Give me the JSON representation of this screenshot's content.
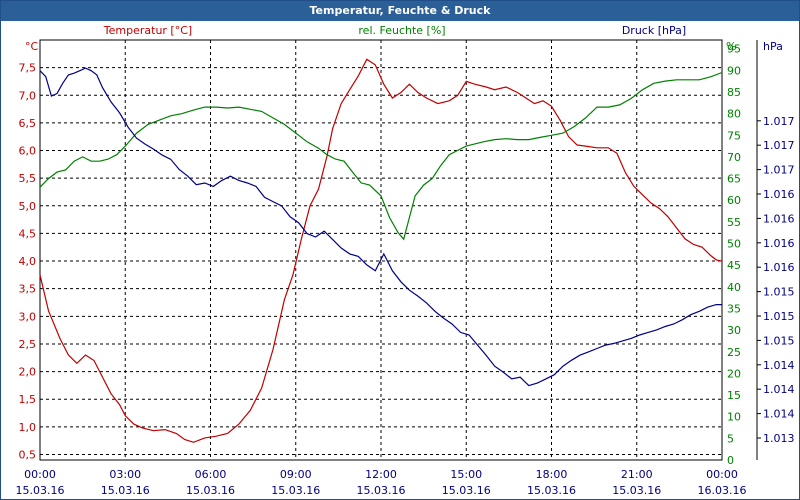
{
  "window": {
    "title": "Temperatur, Feuchte & Druck"
  },
  "chart_data": {
    "type": "line",
    "title": "Temperatur, Feuchte & Druck",
    "colors": {
      "temperature": "#c00000",
      "humidity": "#008000",
      "pressure": "#00008b",
      "grid": "#000000"
    },
    "x": {
      "ticks": [
        {
          "time": "00:00",
          "date": "15.03.16"
        },
        {
          "time": "03:00",
          "date": "15.03.16"
        },
        {
          "time": "06:00",
          "date": "15.03.16"
        },
        {
          "time": "09:00",
          "date": "15.03.16"
        },
        {
          "time": "12:00",
          "date": "15.03.16"
        },
        {
          "time": "15:00",
          "date": "15.03.16"
        },
        {
          "time": "18:00",
          "date": "15.03.16"
        },
        {
          "time": "21:00",
          "date": "15.03.16"
        },
        {
          "time": "00:00",
          "date": "16.03.16"
        }
      ],
      "range_hours": [
        0,
        24
      ]
    },
    "axes": {
      "temperature": {
        "label": "Temperatur [°C]",
        "unit": "°C",
        "ylim": [
          0.4,
          8.0
        ],
        "ticks": [
          "0,5",
          "1,0",
          "1,5",
          "2,0",
          "2,5",
          "3,0",
          "3,5",
          "4,0",
          "4,5",
          "5,0",
          "5,5",
          "6,0",
          "6,5",
          "7,0",
          "7,5"
        ]
      },
      "humidity": {
        "label": "rel. Feuchte [%]",
        "unit": "%",
        "ylim": [
          0,
          97
        ],
        "ticks": [
          "0",
          "5",
          "10",
          "15",
          "20",
          "25",
          "30",
          "35",
          "40",
          "45",
          "50",
          "55",
          "60",
          "65",
          "70",
          "75",
          "80",
          "85",
          "90",
          "95"
        ]
      },
      "pressure": {
        "label": "Druck [hPa]",
        "unit": "hPa",
        "ticks": [
          "1.013",
          "1.014",
          "1.014",
          "1.014",
          "1.015",
          "1.015",
          "1.015",
          "1.016",
          "1.016",
          "1.016",
          "1.016",
          "1.017",
          "1.017",
          "1.017"
        ]
      }
    },
    "series": [
      {
        "name": "Temperatur [°C]",
        "axis": "temperature",
        "points": [
          [
            0,
            3.75
          ],
          [
            0.3,
            3.1
          ],
          [
            0.7,
            2.6
          ],
          [
            1.0,
            2.3
          ],
          [
            1.3,
            2.15
          ],
          [
            1.6,
            2.3
          ],
          [
            1.9,
            2.2
          ],
          [
            2.2,
            1.9
          ],
          [
            2.5,
            1.6
          ],
          [
            2.8,
            1.4
          ],
          [
            3.0,
            1.2
          ],
          [
            3.3,
            1.05
          ],
          [
            3.6,
            0.98
          ],
          [
            4.0,
            0.93
          ],
          [
            4.4,
            0.95
          ],
          [
            4.8,
            0.88
          ],
          [
            5.1,
            0.77
          ],
          [
            5.4,
            0.72
          ],
          [
            5.8,
            0.8
          ],
          [
            6.2,
            0.83
          ],
          [
            6.6,
            0.88
          ],
          [
            7.0,
            1.05
          ],
          [
            7.4,
            1.3
          ],
          [
            7.8,
            1.7
          ],
          [
            8.2,
            2.4
          ],
          [
            8.6,
            3.3
          ],
          [
            8.9,
            3.75
          ],
          [
            9.2,
            4.4
          ],
          [
            9.5,
            5.0
          ],
          [
            9.8,
            5.3
          ],
          [
            10.1,
            5.9
          ],
          [
            10.3,
            6.4
          ],
          [
            10.6,
            6.85
          ],
          [
            10.9,
            7.1
          ],
          [
            11.2,
            7.35
          ],
          [
            11.5,
            7.65
          ],
          [
            11.8,
            7.55
          ],
          [
            12.1,
            7.2
          ],
          [
            12.4,
            6.95
          ],
          [
            12.7,
            7.05
          ],
          [
            13.0,
            7.2
          ],
          [
            13.3,
            7.05
          ],
          [
            13.6,
            6.95
          ],
          [
            14.0,
            6.85
          ],
          [
            14.4,
            6.9
          ],
          [
            14.7,
            7.0
          ],
          [
            15.0,
            7.25
          ],
          [
            15.3,
            7.2
          ],
          [
            15.7,
            7.15
          ],
          [
            16.0,
            7.1
          ],
          [
            16.4,
            7.15
          ],
          [
            16.8,
            7.05
          ],
          [
            17.1,
            6.95
          ],
          [
            17.4,
            6.85
          ],
          [
            17.7,
            6.9
          ],
          [
            18.0,
            6.8
          ],
          [
            18.3,
            6.55
          ],
          [
            18.6,
            6.25
          ],
          [
            18.9,
            6.1
          ],
          [
            19.2,
            6.08
          ],
          [
            19.6,
            6.05
          ],
          [
            20.0,
            6.05
          ],
          [
            20.3,
            5.95
          ],
          [
            20.6,
            5.6
          ],
          [
            20.9,
            5.35
          ],
          [
            21.2,
            5.2
          ],
          [
            21.5,
            5.05
          ],
          [
            21.8,
            4.95
          ],
          [
            22.1,
            4.8
          ],
          [
            22.4,
            4.6
          ],
          [
            22.7,
            4.4
          ],
          [
            23.0,
            4.3
          ],
          [
            23.3,
            4.25
          ],
          [
            23.6,
            4.1
          ],
          [
            23.8,
            4.02
          ],
          [
            24.0,
            4.0
          ]
        ]
      },
      {
        "name": "rel. Feuchte [%]",
        "axis": "humidity",
        "points": [
          [
            0,
            63
          ],
          [
            0.3,
            65
          ],
          [
            0.6,
            66.5
          ],
          [
            0.9,
            67
          ],
          [
            1.2,
            69
          ],
          [
            1.5,
            70
          ],
          [
            1.8,
            69
          ],
          [
            2.1,
            69
          ],
          [
            2.4,
            69.5
          ],
          [
            2.7,
            70.5
          ],
          [
            3.0,
            72.5
          ],
          [
            3.4,
            75.5
          ],
          [
            3.8,
            77.5
          ],
          [
            4.2,
            78.5
          ],
          [
            4.6,
            79.5
          ],
          [
            5.0,
            80
          ],
          [
            5.4,
            80.8
          ],
          [
            5.8,
            81.5
          ],
          [
            6.2,
            81.5
          ],
          [
            6.6,
            81.3
          ],
          [
            7.0,
            81.5
          ],
          [
            7.4,
            81
          ],
          [
            7.8,
            80.5
          ],
          [
            8.2,
            79
          ],
          [
            8.6,
            77.5
          ],
          [
            9.0,
            75.5
          ],
          [
            9.4,
            73.5
          ],
          [
            9.8,
            72
          ],
          [
            10.1,
            70.5
          ],
          [
            10.4,
            69.5
          ],
          [
            10.7,
            69
          ],
          [
            11.0,
            66.5
          ],
          [
            11.3,
            64
          ],
          [
            11.6,
            63.5
          ],
          [
            12.0,
            61
          ],
          [
            12.3,
            56
          ],
          [
            12.6,
            52.5
          ],
          [
            12.8,
            51
          ],
          [
            13.0,
            56
          ],
          [
            13.2,
            61
          ],
          [
            13.5,
            63.5
          ],
          [
            13.8,
            65
          ],
          [
            14.1,
            68
          ],
          [
            14.4,
            70.5
          ],
          [
            14.7,
            71.5
          ],
          [
            15.0,
            72.5
          ],
          [
            15.3,
            73
          ],
          [
            15.6,
            73.5
          ],
          [
            16.0,
            74
          ],
          [
            16.4,
            74.2
          ],
          [
            16.8,
            74
          ],
          [
            17.2,
            74
          ],
          [
            17.6,
            74.5
          ],
          [
            18.0,
            75
          ],
          [
            18.4,
            75.5
          ],
          [
            18.8,
            77
          ],
          [
            19.2,
            79
          ],
          [
            19.6,
            81.5
          ],
          [
            20.0,
            81.5
          ],
          [
            20.4,
            82
          ],
          [
            20.8,
            83.5
          ],
          [
            21.2,
            85.5
          ],
          [
            21.6,
            87
          ],
          [
            22.0,
            87.5
          ],
          [
            22.4,
            87.8
          ],
          [
            22.8,
            87.8
          ],
          [
            23.2,
            87.8
          ],
          [
            23.6,
            88.5
          ],
          [
            24.0,
            89.5
          ]
        ]
      },
      {
        "name": "Druck [hPa]",
        "axis": "pressure",
        "points": [
          [
            0,
            1017.35
          ],
          [
            0.2,
            1017.28
          ],
          [
            0.4,
            1017.05
          ],
          [
            0.6,
            1017.08
          ],
          [
            0.8,
            1017.2
          ],
          [
            1.0,
            1017.3
          ],
          [
            1.2,
            1017.32
          ],
          [
            1.4,
            1017.35
          ],
          [
            1.6,
            1017.38
          ],
          [
            1.8,
            1017.35
          ],
          [
            2.0,
            1017.3
          ],
          [
            2.2,
            1017.15
          ],
          [
            2.5,
            1016.98
          ],
          [
            2.8,
            1016.85
          ],
          [
            3.1,
            1016.68
          ],
          [
            3.4,
            1016.55
          ],
          [
            3.7,
            1016.48
          ],
          [
            4.0,
            1016.42
          ],
          [
            4.3,
            1016.35
          ],
          [
            4.6,
            1016.3
          ],
          [
            4.9,
            1016.18
          ],
          [
            5.2,
            1016.1
          ],
          [
            5.5,
            1016.0
          ],
          [
            5.8,
            1016.02
          ],
          [
            6.1,
            1015.98
          ],
          [
            6.4,
            1016.05
          ],
          [
            6.7,
            1016.1
          ],
          [
            7.0,
            1016.05
          ],
          [
            7.3,
            1016.02
          ],
          [
            7.6,
            1015.98
          ],
          [
            7.9,
            1015.85
          ],
          [
            8.2,
            1015.8
          ],
          [
            8.5,
            1015.75
          ],
          [
            8.8,
            1015.62
          ],
          [
            9.1,
            1015.55
          ],
          [
            9.4,
            1015.42
          ],
          [
            9.7,
            1015.38
          ],
          [
            10.0,
            1015.45
          ],
          [
            10.3,
            1015.35
          ],
          [
            10.6,
            1015.25
          ],
          [
            10.9,
            1015.18
          ],
          [
            11.2,
            1015.15
          ],
          [
            11.5,
            1015.05
          ],
          [
            11.8,
            1014.98
          ],
          [
            12.1,
            1015.18
          ],
          [
            12.4,
            1014.98
          ],
          [
            12.7,
            1014.85
          ],
          [
            13.0,
            1014.75
          ],
          [
            13.3,
            1014.68
          ],
          [
            13.6,
            1014.6
          ],
          [
            13.9,
            1014.5
          ],
          [
            14.2,
            1014.42
          ],
          [
            14.5,
            1014.35
          ],
          [
            14.8,
            1014.25
          ],
          [
            15.1,
            1014.22
          ],
          [
            15.4,
            1014.1
          ],
          [
            15.7,
            1013.98
          ],
          [
            16.0,
            1013.85
          ],
          [
            16.3,
            1013.78
          ],
          [
            16.6,
            1013.7
          ],
          [
            16.9,
            1013.72
          ],
          [
            17.2,
            1013.62
          ],
          [
            17.5,
            1013.65
          ],
          [
            17.8,
            1013.7
          ],
          [
            18.1,
            1013.75
          ],
          [
            18.4,
            1013.85
          ],
          [
            18.7,
            1013.92
          ],
          [
            19.0,
            1013.98
          ],
          [
            19.3,
            1014.02
          ],
          [
            19.6,
            1014.06
          ],
          [
            19.9,
            1014.1
          ],
          [
            20.2,
            1014.12
          ],
          [
            20.5,
            1014.15
          ],
          [
            20.8,
            1014.18
          ],
          [
            21.1,
            1014.22
          ],
          [
            21.4,
            1014.25
          ],
          [
            21.7,
            1014.28
          ],
          [
            22.0,
            1014.32
          ],
          [
            22.3,
            1014.35
          ],
          [
            22.6,
            1014.4
          ],
          [
            22.9,
            1014.46
          ],
          [
            23.2,
            1014.5
          ],
          [
            23.5,
            1014.55
          ],
          [
            23.8,
            1014.58
          ],
          [
            24.0,
            1014.58
          ]
        ]
      }
    ]
  }
}
